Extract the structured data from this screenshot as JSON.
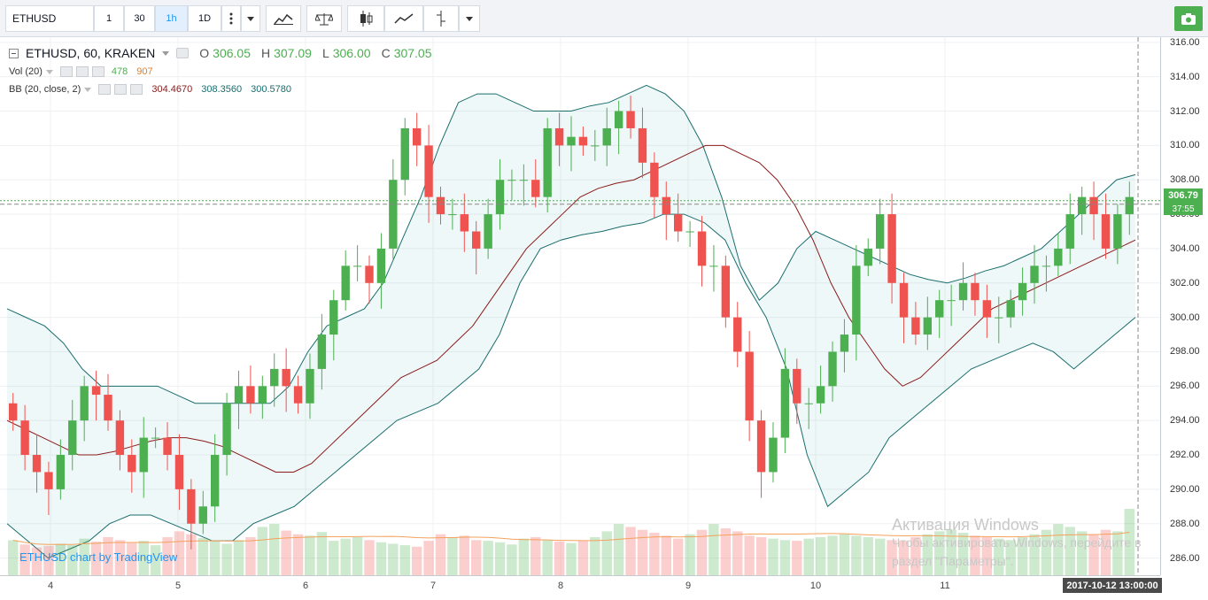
{
  "toolbar": {
    "symbol": "ETHUSD",
    "intervals": [
      {
        "label": "1",
        "active": false
      },
      {
        "label": "30",
        "active": false
      },
      {
        "label": "1h",
        "active": true
      },
      {
        "label": "1D",
        "active": false
      }
    ],
    "icons": [
      "more-intervals-icon",
      "chevron-down-icon",
      "indicators-icon",
      "compare-icon",
      "candles-icon",
      "line-style-icon",
      "replay-icon",
      "chevron-down-icon",
      "camera-icon"
    ]
  },
  "legend": {
    "title": "ETHUSD, 60, KRAKEN",
    "o_label": "O",
    "o_val": "306.05",
    "h_label": "H",
    "h_val": "307.09",
    "l_label": "L",
    "l_val": "306.00",
    "c_label": "C",
    "c_val": "307.05",
    "vol_name": "Vol (20)",
    "vol_val1": "478",
    "vol_val2": "907",
    "bb_name": "BB (20, close, 2)",
    "bb_val1": "304.4670",
    "bb_val2": "308.3560",
    "bb_val3": "300.5780"
  },
  "watermark": "ETHUSD chart by TradingView",
  "activation": {
    "title": "Активация Windows",
    "line1": "Чтобы активировать Windows, перейдите в",
    "line2": "раздел \"Параметры\"."
  },
  "current_price": "306.79",
  "countdown": "37:55",
  "crosshair_time": "2017-10-12 13:00:00",
  "colors": {
    "up": "#4caf50",
    "down": "#ef5350",
    "bb_basis": "#8b1a1a",
    "bb_band": "#1a6d6d",
    "vol_ma": "#f5a15a"
  },
  "chart_data": {
    "type": "candlestick",
    "title": "ETHUSD, 60, KRAKEN",
    "x_ticks": [
      "4",
      "5",
      "6",
      "7",
      "8",
      "9",
      "10",
      "11"
    ],
    "y_ticks": [
      "316.00",
      "314.00",
      "312.00",
      "310.00",
      "308.00",
      "306.00",
      "304.00",
      "302.00",
      "300.00",
      "298.00",
      "296.00",
      "294.00",
      "292.00",
      "290.00",
      "288.00",
      "286.00"
    ],
    "ylim": [
      285,
      316.3
    ],
    "close_series": [
      294,
      292,
      291,
      290,
      292,
      294,
      296,
      295.5,
      294,
      292,
      291,
      293,
      293,
      292,
      290,
      288,
      289,
      292,
      295,
      296,
      295,
      296,
      297,
      296,
      295,
      297,
      299,
      301,
      303,
      303,
      302,
      304,
      308,
      311,
      310,
      307,
      306,
      306,
      305,
      304,
      306,
      308,
      308,
      308,
      307,
      311,
      310,
      310.5,
      310,
      310,
      311,
      312,
      311,
      309,
      307,
      306,
      305,
      305,
      303,
      303,
      300,
      298,
      294,
      291,
      293,
      297,
      295,
      295,
      296,
      298,
      299,
      303,
      304,
      306,
      302,
      300,
      299,
      300,
      301,
      301,
      302,
      301,
      300,
      300,
      301,
      302,
      303,
      303,
      304,
      306,
      307,
      306,
      304,
      306,
      307
    ],
    "bb_basis": [
      294,
      293.5,
      293,
      292.5,
      292,
      292,
      292.2,
      292.5,
      292.8,
      293,
      293,
      292.8,
      292.5,
      292,
      291.5,
      291,
      291,
      291.5,
      292.5,
      293.5,
      294.5,
      295.5,
      296.5,
      297,
      297.5,
      298.5,
      299.5,
      301,
      302.5,
      304,
      305,
      306,
      307,
      307.5,
      307.8,
      308,
      308.5,
      309,
      309.5,
      310,
      310,
      309.5,
      309,
      308,
      306.5,
      304.5,
      302,
      300,
      298.5,
      297,
      296,
      296.5,
      297.5,
      298.5,
      299.5,
      300.5,
      301,
      301.5,
      302,
      302.5,
      303,
      303.5,
      304,
      304.5
    ],
    "bb_upper": [
      300.5,
      300,
      299.5,
      298.5,
      297,
      296,
      296,
      296,
      296,
      295.5,
      295,
      295,
      295,
      295,
      295,
      296,
      298,
      299.5,
      300,
      300.5,
      302,
      304.5,
      307,
      310,
      312.5,
      313,
      313,
      312.5,
      312,
      312,
      312,
      312.3,
      312.5,
      313,
      313.5,
      313,
      312,
      310,
      307,
      303,
      301,
      302,
      304,
      305,
      304.5,
      304,
      303.5,
      303,
      302.5,
      302.2,
      302,
      302.3,
      302.7,
      303,
      303.5,
      304,
      305,
      306,
      307,
      308,
      308.3
    ],
    "bb_lower": [
      288,
      287,
      286,
      286.5,
      287,
      288,
      288.5,
      288.5,
      288,
      287.5,
      287,
      287,
      288,
      288.5,
      289,
      290,
      291,
      292,
      293,
      294,
      294.5,
      295,
      296,
      297,
      299,
      302,
      304,
      304.5,
      304.8,
      305,
      305.3,
      305.5,
      306,
      306,
      305.5,
      304.5,
      302,
      300,
      297,
      292,
      289,
      290,
      291,
      293,
      294,
      295,
      296,
      297,
      297.5,
      298,
      298.5,
      298,
      297,
      298,
      299,
      300
    ]
  },
  "volume_data": {
    "values": [
      478,
      420,
      380,
      400,
      430,
      410,
      500,
      460,
      520,
      480,
      440,
      470,
      410,
      520,
      600,
      560,
      510,
      470,
      430,
      480,
      520,
      660,
      700,
      610,
      560,
      540,
      590,
      470,
      500,
      520,
      480,
      450,
      430,
      410,
      390,
      470,
      560,
      520,
      540,
      480,
      470,
      450,
      420,
      500,
      520,
      480,
      460,
      440,
      470,
      520,
      600,
      700,
      660,
      620,
      580,
      540,
      500,
      560,
      620,
      700,
      640,
      600,
      540,
      520,
      500,
      480,
      470,
      500,
      520,
      540,
      560,
      540,
      520,
      500,
      480,
      470,
      520,
      560,
      600,
      620,
      580,
      540,
      520,
      500,
      480,
      520,
      560,
      620,
      700,
      660,
      600,
      560,
      620,
      600,
      907
    ]
  }
}
